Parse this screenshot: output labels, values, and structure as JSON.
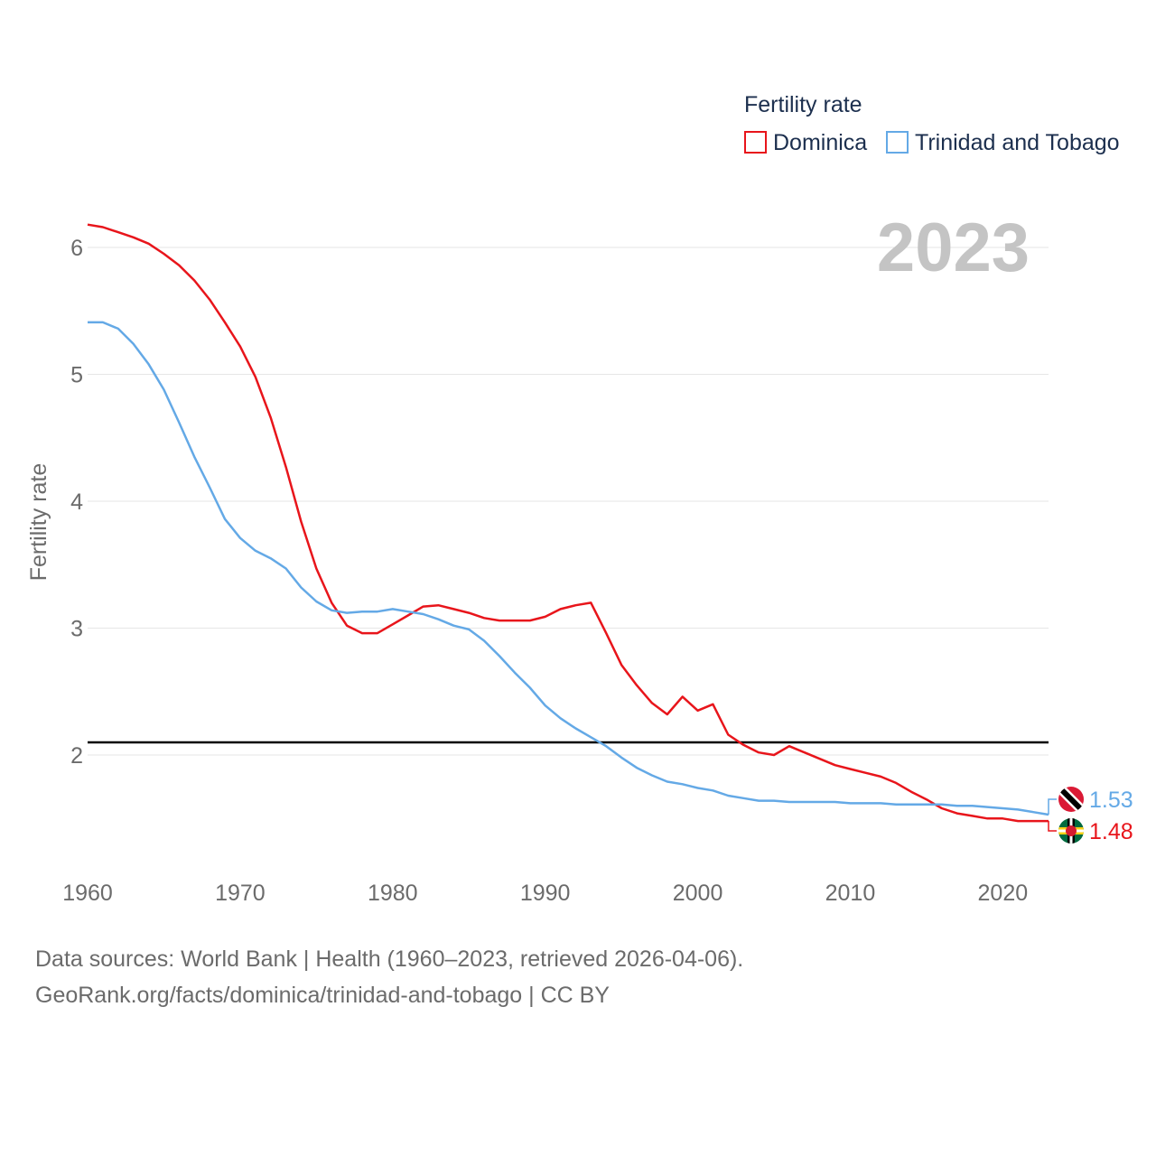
{
  "chart_data": {
    "type": "line",
    "year_label": "2023",
    "ylabel": "Fertility rate",
    "xlim": [
      1960,
      2023
    ],
    "ylim": [
      1.3,
      6.2
    ],
    "xticks": [
      1960,
      1970,
      1980,
      1990,
      2000,
      2010,
      2020
    ],
    "yticks": [
      2,
      3,
      4,
      5,
      6
    ],
    "grid": true,
    "reference_line": {
      "value": 2.1,
      "color": "#000000"
    },
    "legend": {
      "title": "Fertility rate",
      "position": "top-right",
      "entries": [
        "Dominica",
        "Trinidad and Tobago"
      ]
    },
    "series": [
      {
        "name": "Dominica",
        "color": "#e8151b",
        "end_label": "1.48",
        "flag_icon": "dominica-flag-icon",
        "x": [
          1960,
          1961,
          1962,
          1963,
          1964,
          1965,
          1966,
          1967,
          1968,
          1969,
          1970,
          1971,
          1972,
          1973,
          1974,
          1975,
          1976,
          1977,
          1978,
          1979,
          1980,
          1981,
          1982,
          1983,
          1984,
          1985,
          1986,
          1987,
          1988,
          1989,
          1990,
          1991,
          1992,
          1993,
          1994,
          1995,
          1996,
          1997,
          1998,
          1999,
          2000,
          2001,
          2002,
          2003,
          2004,
          2005,
          2006,
          2007,
          2008,
          2009,
          2010,
          2011,
          2012,
          2013,
          2014,
          2015,
          2016,
          2017,
          2018,
          2019,
          2020,
          2021,
          2022,
          2023
        ],
        "values": [
          6.18,
          6.16,
          6.12,
          6.08,
          6.03,
          5.95,
          5.86,
          5.74,
          5.59,
          5.41,
          5.22,
          4.98,
          4.66,
          4.27,
          3.84,
          3.47,
          3.2,
          3.02,
          2.96,
          2.96,
          3.03,
          3.1,
          3.17,
          3.18,
          3.15,
          3.12,
          3.08,
          3.06,
          3.06,
          3.06,
          3.09,
          3.15,
          3.18,
          3.2,
          2.96,
          2.71,
          2.55,
          2.41,
          2.32,
          2.46,
          2.35,
          2.4,
          2.16,
          2.08,
          2.02,
          2.0,
          2.07,
          2.02,
          1.97,
          1.92,
          1.89,
          1.86,
          1.83,
          1.78,
          1.71,
          1.65,
          1.58,
          1.54,
          1.52,
          1.5,
          1.5,
          1.48,
          1.48,
          1.48
        ]
      },
      {
        "name": "Trinidad and Tobago",
        "color": "#64a9e6",
        "end_label": "1.53",
        "flag_icon": "trinidad-and-tobago-flag-icon",
        "x": [
          1960,
          1961,
          1962,
          1963,
          1964,
          1965,
          1966,
          1967,
          1968,
          1969,
          1970,
          1971,
          1972,
          1973,
          1974,
          1975,
          1976,
          1977,
          1978,
          1979,
          1980,
          1981,
          1982,
          1983,
          1984,
          1985,
          1986,
          1987,
          1988,
          1989,
          1990,
          1991,
          1992,
          1993,
          1994,
          1995,
          1996,
          1997,
          1998,
          1999,
          2000,
          2001,
          2002,
          2003,
          2004,
          2005,
          2006,
          2007,
          2008,
          2009,
          2010,
          2011,
          2012,
          2013,
          2014,
          2015,
          2016,
          2017,
          2018,
          2019,
          2020,
          2021,
          2022,
          2023
        ],
        "values": [
          5.41,
          5.41,
          5.36,
          5.24,
          5.08,
          4.88,
          4.62,
          4.35,
          4.11,
          3.86,
          3.71,
          3.61,
          3.55,
          3.47,
          3.32,
          3.21,
          3.14,
          3.12,
          3.13,
          3.13,
          3.15,
          3.13,
          3.11,
          3.07,
          3.02,
          2.99,
          2.9,
          2.78,
          2.65,
          2.53,
          2.39,
          2.29,
          2.21,
          2.14,
          2.07,
          1.98,
          1.9,
          1.84,
          1.79,
          1.77,
          1.74,
          1.72,
          1.68,
          1.66,
          1.64,
          1.64,
          1.63,
          1.63,
          1.63,
          1.63,
          1.62,
          1.62,
          1.62,
          1.61,
          1.61,
          1.61,
          1.61,
          1.6,
          1.6,
          1.59,
          1.58,
          1.57,
          1.55,
          1.53
        ]
      }
    ]
  },
  "source": {
    "line1": "Data sources: World Bank | Health (1960–2023, retrieved 2026-04-06).",
    "line2": "GeoRank.org/facts/dominica/trinidad-and-tobago | CC BY"
  }
}
